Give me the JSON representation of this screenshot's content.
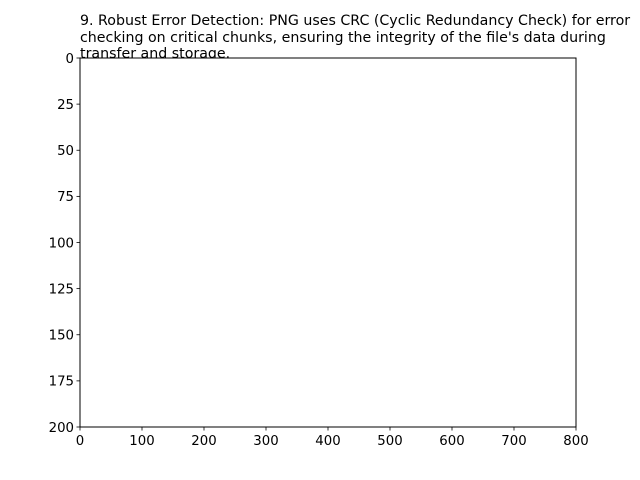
{
  "chart_data": {
    "type": "scatter",
    "title_lines": [
      "9. Robust Error Detection: PNG uses CRC (Cyclic Redundancy Check) for error",
      "checking on critical chunks, ensuring the integrity of the file's data during",
      "transfer and storage."
    ],
    "xlabel": "",
    "ylabel": "",
    "xlim": [
      0,
      800
    ],
    "ylim": [
      200,
      0
    ],
    "y_inverted": true,
    "xticks": [
      0,
      100,
      200,
      300,
      400,
      500,
      600,
      700,
      800
    ],
    "yticks": [
      0,
      25,
      50,
      75,
      100,
      125,
      150,
      175,
      200
    ],
    "series": [],
    "grid": false
  }
}
